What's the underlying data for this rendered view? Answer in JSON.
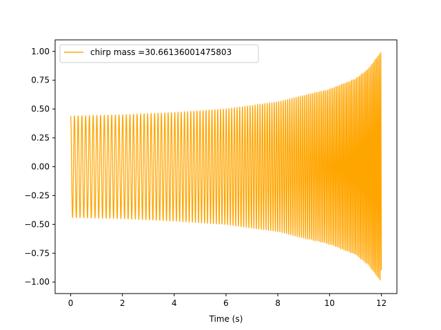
{
  "chart_data": {
    "type": "line",
    "title": "",
    "xlabel": "Time (s)",
    "ylabel": "",
    "xlim": [
      -0.6,
      12.6
    ],
    "ylim": [
      -1.1,
      1.1
    ],
    "x_ticks": [
      0,
      2,
      4,
      6,
      8,
      10,
      12
    ],
    "x_tick_labels": [
      "0",
      "2",
      "4",
      "6",
      "8",
      "10",
      "12"
    ],
    "y_ticks": [
      -1.0,
      -0.75,
      -0.5,
      -0.25,
      0.0,
      0.25,
      0.5,
      0.75,
      1.0
    ],
    "y_tick_labels": [
      "−1.00",
      "−0.75",
      "−0.50",
      "−0.25",
      "0.00",
      "0.25",
      "0.50",
      "0.75",
      "1.00"
    ],
    "grid": false,
    "legend_position": "top-left",
    "series": [
      {
        "name": "chirp mass =30.66136001475803",
        "color": "#ffa500",
        "x_start": 0,
        "x_end": 12,
        "amplitude_envelope": [
          {
            "x": 0,
            "y": 0.44
          },
          {
            "x": 2,
            "y": 0.45
          },
          {
            "x": 4,
            "y": 0.47
          },
          {
            "x": 6,
            "y": 0.5
          },
          {
            "x": 8,
            "y": 0.56
          },
          {
            "x": 10,
            "y": 0.67
          },
          {
            "x": 11,
            "y": 0.76
          },
          {
            "x": 11.5,
            "y": 0.85
          },
          {
            "x": 12,
            "y": 1.0
          }
        ],
        "cycles_per_second_start": 6.9,
        "cycles_per_second_end": 18
      }
    ]
  }
}
